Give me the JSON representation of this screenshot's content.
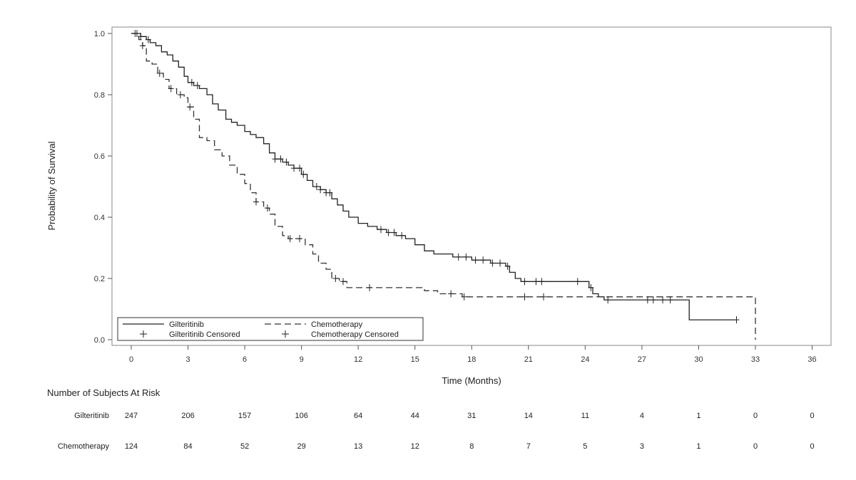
{
  "chart_data": {
    "type": "line",
    "title": "",
    "xlabel": "Time (Months)",
    "ylabel": "Probability of Survival",
    "xlim": [
      -1,
      37
    ],
    "ylim": [
      -0.02,
      1.02
    ],
    "xticks": [
      0,
      3,
      6,
      9,
      12,
      15,
      18,
      21,
      24,
      27,
      30,
      33,
      36
    ],
    "yticks": [
      0.0,
      0.2,
      0.4,
      0.6,
      0.8,
      1.0
    ],
    "ytick_labels": [
      "0.0",
      "0.2",
      "0.4",
      "0.6",
      "0.8",
      "1.0"
    ],
    "grid": false,
    "legend_position": "bottom-left",
    "series": [
      {
        "name": "Gilteritinib",
        "line_style": "solid",
        "color": "#222222",
        "steps": [
          [
            0,
            1.0
          ],
          [
            0.3,
            1.0
          ],
          [
            0.5,
            0.99
          ],
          [
            0.8,
            0.98
          ],
          [
            1.0,
            0.97
          ],
          [
            1.3,
            0.96
          ],
          [
            1.6,
            0.94
          ],
          [
            1.9,
            0.93
          ],
          [
            2.2,
            0.91
          ],
          [
            2.5,
            0.89
          ],
          [
            2.8,
            0.86
          ],
          [
            3.0,
            0.84
          ],
          [
            3.3,
            0.83
          ],
          [
            3.6,
            0.82
          ],
          [
            4.0,
            0.8
          ],
          [
            4.3,
            0.77
          ],
          [
            4.6,
            0.75
          ],
          [
            5.0,
            0.72
          ],
          [
            5.3,
            0.71
          ],
          [
            5.6,
            0.7
          ],
          [
            6.0,
            0.68
          ],
          [
            6.3,
            0.67
          ],
          [
            6.6,
            0.66
          ],
          [
            7.0,
            0.64
          ],
          [
            7.3,
            0.61
          ],
          [
            7.6,
            0.59
          ],
          [
            8.0,
            0.58
          ],
          [
            8.3,
            0.57
          ],
          [
            8.6,
            0.56
          ],
          [
            9.0,
            0.54
          ],
          [
            9.3,
            0.52
          ],
          [
            9.6,
            0.5
          ],
          [
            10.0,
            0.49
          ],
          [
            10.3,
            0.48
          ],
          [
            10.6,
            0.46
          ],
          [
            10.9,
            0.44
          ],
          [
            11.2,
            0.42
          ],
          [
            11.5,
            0.4
          ],
          [
            12.0,
            0.38
          ],
          [
            12.5,
            0.37
          ],
          [
            13.0,
            0.36
          ],
          [
            13.5,
            0.35
          ],
          [
            14.0,
            0.34
          ],
          [
            14.5,
            0.33
          ],
          [
            15.0,
            0.31
          ],
          [
            15.5,
            0.29
          ],
          [
            16.0,
            0.28
          ],
          [
            17.0,
            0.27
          ],
          [
            18.0,
            0.26
          ],
          [
            19.0,
            0.25
          ],
          [
            19.8,
            0.24
          ],
          [
            20.0,
            0.22
          ],
          [
            20.3,
            0.2
          ],
          [
            20.6,
            0.19
          ],
          [
            24.2,
            0.17
          ],
          [
            24.4,
            0.15
          ],
          [
            24.7,
            0.14
          ],
          [
            25.0,
            0.13
          ],
          [
            29.5,
            0.065
          ],
          [
            32.0,
            0.065
          ]
        ],
        "censor_times": [
          0.2,
          0.5,
          0.9,
          3.2,
          3.5,
          7.6,
          7.9,
          8.2,
          8.6,
          8.9,
          9.1,
          9.8,
          10.0,
          10.3,
          10.5,
          13.2,
          13.6,
          13.9,
          14.3,
          17.3,
          17.7,
          18.2,
          18.6,
          19.1,
          19.5,
          19.9,
          20.8,
          21.4,
          21.7,
          23.6,
          24.3,
          25.2,
          27.3,
          27.6,
          28.1,
          28.5,
          32.0
        ]
      },
      {
        "name": "Chemotherapy",
        "line_style": "dashed",
        "color": "#333333",
        "steps": [
          [
            0,
            1.0
          ],
          [
            0.4,
            0.98
          ],
          [
            0.6,
            0.96
          ],
          [
            0.8,
            0.91
          ],
          [
            1.1,
            0.9
          ],
          [
            1.4,
            0.87
          ],
          [
            1.7,
            0.85
          ],
          [
            2.0,
            0.82
          ],
          [
            2.4,
            0.8
          ],
          [
            2.8,
            0.79
          ],
          [
            3.0,
            0.76
          ],
          [
            3.3,
            0.72
          ],
          [
            3.6,
            0.66
          ],
          [
            4.0,
            0.65
          ],
          [
            4.4,
            0.62
          ],
          [
            4.8,
            0.6
          ],
          [
            5.2,
            0.57
          ],
          [
            5.6,
            0.54
          ],
          [
            6.0,
            0.51
          ],
          [
            6.3,
            0.48
          ],
          [
            6.6,
            0.45
          ],
          [
            7.0,
            0.43
          ],
          [
            7.3,
            0.41
          ],
          [
            7.6,
            0.37
          ],
          [
            8.0,
            0.34
          ],
          [
            8.3,
            0.33
          ],
          [
            9.2,
            0.31
          ],
          [
            9.6,
            0.28
          ],
          [
            9.9,
            0.25
          ],
          [
            10.3,
            0.23
          ],
          [
            10.6,
            0.2
          ],
          [
            11.0,
            0.19
          ],
          [
            11.4,
            0.17
          ],
          [
            15.5,
            0.16
          ],
          [
            16.2,
            0.15
          ],
          [
            17.5,
            0.14
          ],
          [
            33.0,
            0.14
          ],
          [
            33.0,
            0.0
          ]
        ],
        "censor_times": [
          0.3,
          0.6,
          1.5,
          2.1,
          2.6,
          3.1,
          6.6,
          7.2,
          8.4,
          8.9,
          10.8,
          11.2,
          12.6,
          16.9,
          17.6,
          20.8,
          21.8
        ]
      }
    ],
    "legend": {
      "line1": "Gilteritinib",
      "line2": "Chemotherapy",
      "censor1": "Gilteritinib Censored",
      "censor2": "Chemotherapy Censored"
    },
    "at_risk": {
      "title": "Number of Subjects At Risk",
      "times": [
        0,
        3,
        6,
        9,
        12,
        15,
        18,
        21,
        24,
        27,
        30,
        33,
        36
      ],
      "rows": [
        {
          "label": "Gilteritinib",
          "values": [
            "247",
            "206",
            "157",
            "106",
            "64",
            "44",
            "31",
            "14",
            "11",
            "4",
            "1",
            "0",
            "0"
          ]
        },
        {
          "label": "Chemotherapy",
          "values": [
            "124",
            "84",
            "52",
            "29",
            "13",
            "12",
            "8",
            "7",
            "5",
            "3",
            "1",
            "0",
            "0"
          ]
        }
      ]
    }
  }
}
